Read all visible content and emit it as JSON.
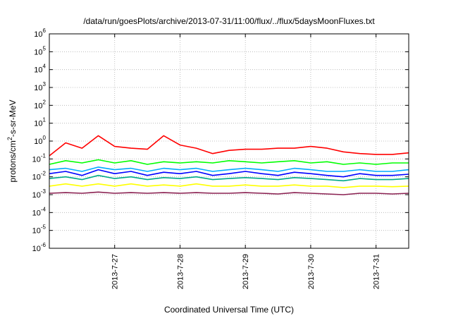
{
  "chart_data": {
    "type": "line",
    "title": "/data/run/goesPlots/archive/2013-07-31/11:00/flux/../flux/5daysMoonFluxes.txt",
    "xlabel": "Coordinated Universal Time (UTC)",
    "ylabel": "protons/cm2-s-sr-MeV",
    "y_scale": "log",
    "ylim": [
      1e-06,
      1000000.0
    ],
    "xlim": [
      "2013-07-26T00:00",
      "2013-07-31T12:00"
    ],
    "grid": true,
    "x_ticks": [
      {
        "date": "2013-07-27T00:00",
        "label": "2013-7-27"
      },
      {
        "date": "2013-07-28T00:00",
        "label": "2013-7-28"
      },
      {
        "date": "2013-07-29T00:00",
        "label": "2013-7-29"
      },
      {
        "date": "2013-07-30T00:00",
        "label": "2013-7-30"
      },
      {
        "date": "2013-07-31T00:00",
        "label": "2013-7-31"
      }
    ],
    "y_ticks": [
      {
        "value": 1e-06,
        "base": "10",
        "exp": "-6"
      },
      {
        "value": 1e-05,
        "base": "10",
        "exp": "-5"
      },
      {
        "value": 0.0001,
        "base": "10",
        "exp": "-4"
      },
      {
        "value": 0.001,
        "base": "10",
        "exp": "-3"
      },
      {
        "value": 0.01,
        "base": "10",
        "exp": "-2"
      },
      {
        "value": 0.1,
        "base": "10",
        "exp": "-1"
      },
      {
        "value": 1,
        "base": "10",
        "exp": "0"
      },
      {
        "value": 10,
        "base": "10",
        "exp": "1"
      },
      {
        "value": 100,
        "base": "10",
        "exp": "2"
      },
      {
        "value": 1000,
        "base": "10",
        "exp": "3"
      },
      {
        "value": 10000,
        "base": "10",
        "exp": "4"
      },
      {
        "value": 100000,
        "base": "10",
        "exp": "5"
      },
      {
        "value": 1000000,
        "base": "10",
        "exp": "6"
      }
    ],
    "x": [
      "2013-07-26T00:00",
      "2013-07-26T06:00",
      "2013-07-26T12:00",
      "2013-07-26T18:00",
      "2013-07-27T00:00",
      "2013-07-27T06:00",
      "2013-07-27T12:00",
      "2013-07-27T18:00",
      "2013-07-28T00:00",
      "2013-07-28T06:00",
      "2013-07-28T12:00",
      "2013-07-28T18:00",
      "2013-07-29T00:00",
      "2013-07-29T06:00",
      "2013-07-29T12:00",
      "2013-07-29T18:00",
      "2013-07-30T00:00",
      "2013-07-30T06:00",
      "2013-07-30T12:00",
      "2013-07-30T18:00",
      "2013-07-31T00:00",
      "2013-07-31T06:00",
      "2013-07-31T12:00"
    ],
    "series": [
      {
        "color": "#ff0000",
        "values": [
          0.15,
          0.8,
          0.4,
          2.0,
          0.5,
          0.4,
          0.35,
          2.0,
          0.6,
          0.4,
          0.2,
          0.3,
          0.35,
          0.35,
          0.4,
          0.4,
          0.5,
          0.4,
          0.25,
          0.2,
          0.18,
          0.18,
          0.22
        ]
      },
      {
        "color": "#00ff00",
        "values": [
          0.05,
          0.08,
          0.06,
          0.09,
          0.06,
          0.08,
          0.05,
          0.07,
          0.06,
          0.07,
          0.06,
          0.08,
          0.07,
          0.06,
          0.07,
          0.08,
          0.06,
          0.07,
          0.05,
          0.06,
          0.05,
          0.06,
          0.06
        ]
      },
      {
        "color": "#00aaff",
        "values": [
          0.025,
          0.03,
          0.02,
          0.035,
          0.025,
          0.03,
          0.02,
          0.03,
          0.025,
          0.03,
          0.02,
          0.025,
          0.03,
          0.025,
          0.02,
          0.03,
          0.025,
          0.02,
          0.02,
          0.025,
          0.02,
          0.02,
          0.025
        ]
      },
      {
        "color": "#0000ff",
        "values": [
          0.015,
          0.02,
          0.012,
          0.025,
          0.015,
          0.02,
          0.012,
          0.018,
          0.015,
          0.02,
          0.012,
          0.015,
          0.02,
          0.015,
          0.012,
          0.018,
          0.015,
          0.012,
          0.01,
          0.015,
          0.012,
          0.012,
          0.014
        ]
      },
      {
        "color": "#00aa88",
        "values": [
          0.008,
          0.01,
          0.007,
          0.012,
          0.008,
          0.01,
          0.007,
          0.009,
          0.008,
          0.01,
          0.007,
          0.008,
          0.009,
          0.008,
          0.007,
          0.009,
          0.008,
          0.007,
          0.006,
          0.008,
          0.007,
          0.007,
          0.008
        ]
      },
      {
        "color": "#ffff00",
        "values": [
          0.003,
          0.004,
          0.003,
          0.004,
          0.003,
          0.004,
          0.003,
          0.0035,
          0.003,
          0.004,
          0.003,
          0.003,
          0.0035,
          0.003,
          0.003,
          0.0035,
          0.003,
          0.003,
          0.0025,
          0.003,
          0.003,
          0.0028,
          0.003
        ]
      },
      {
        "color": "#8b2252",
        "values": [
          0.0012,
          0.0013,
          0.0012,
          0.0014,
          0.0012,
          0.0013,
          0.0012,
          0.0013,
          0.0012,
          0.0013,
          0.0012,
          0.0012,
          0.0013,
          0.0012,
          0.0011,
          0.0013,
          0.0012,
          0.0011,
          0.001,
          0.0012,
          0.0012,
          0.0011,
          0.0012
        ]
      }
    ]
  }
}
